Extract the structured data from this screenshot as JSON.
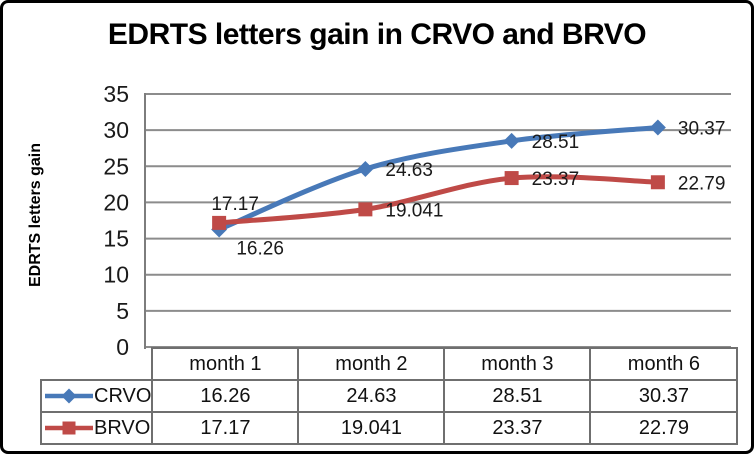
{
  "chart_data": {
    "type": "line",
    "title": "EDRTS letters gain in CRVO and BRVO",
    "ylabel": "EDRTS letters gain",
    "xlabel": "",
    "categories": [
      "month 1",
      "month 2",
      "month 3",
      "month 6"
    ],
    "series": [
      {
        "name": "CRVO",
        "values": [
          16.26,
          24.63,
          28.51,
          30.37
        ],
        "color": "#4879b8",
        "marker": "diamond",
        "label_placements": [
          "below",
          "right",
          "right",
          "right"
        ]
      },
      {
        "name": "BRVO",
        "values": [
          17.17,
          19.041,
          23.37,
          22.79
        ],
        "color": "#bf4a47",
        "marker": "square",
        "label_placements": [
          "above",
          "right",
          "right",
          "right"
        ]
      }
    ],
    "ylim": [
      0,
      35
    ],
    "yticks": [
      0,
      5,
      10,
      15,
      20,
      25,
      30,
      35
    ],
    "grid": true,
    "smooth_lines": true,
    "show_data_labels": true,
    "legend_position": "data-table-left",
    "colors": {
      "gridline": "#8c8c8c",
      "axis": "#7d7d7d",
      "table_border": "#6f6f6f",
      "text": "#1a1a1a",
      "background": "#ffffff",
      "frame_border": "#000000"
    }
  }
}
